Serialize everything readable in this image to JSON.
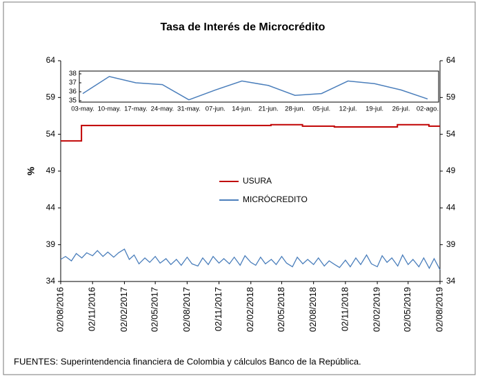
{
  "chart_data": [
    {
      "type": "line",
      "title": "Tasa de Interés de Microcrédito",
      "ylabel": "%",
      "note": "FUENTES: Superintendencia financiera de Colombia y cálculos Banco de la República.",
      "xlim": [
        "02/08/2016",
        "02/08/2019"
      ],
      "xticks": [
        "02/08/2016",
        "02/11/2016",
        "02/02/2017",
        "02/05/2017",
        "02/08/2017",
        "02/11/2017",
        "02/02/2018",
        "02/05/2018",
        "02/08/2018",
        "02/11/2018",
        "02/02/2019",
        "02/05/2019",
        "02/08/2019"
      ],
      "ylim": [
        34,
        64
      ],
      "yticks": [
        34,
        39,
        44,
        49,
        54,
        59,
        64
      ],
      "y2lim": [
        34,
        64
      ],
      "y2ticks": [
        34,
        39,
        44,
        49,
        54,
        59,
        64
      ],
      "series": [
        {
          "name": "USURA",
          "color": "#c00000",
          "step": true,
          "x": [
            "02/08/2016",
            "01/10/2016",
            "01/04/2018",
            "01/07/2018",
            "01/10/2018",
            "01/04/2019",
            "01/07/2019"
          ],
          "values": [
            53.1,
            55.2,
            55.3,
            55.1,
            55.0,
            55.3,
            55.1
          ]
        },
        {
          "name": "MICRÓCREDITO",
          "color": "#4a7ebb",
          "x": [
            "02/08/2016",
            "16/08/2016",
            "02/09/2016",
            "16/09/2016",
            "02/10/2016",
            "16/10/2016",
            "02/11/2016",
            "16/11/2016",
            "02/12/2016",
            "16/12/2016",
            "02/01/2017",
            "16/01/2017",
            "02/02/2017",
            "16/02/2017",
            "02/03/2017",
            "16/03/2017",
            "02/04/2017",
            "16/04/2017",
            "02/05/2017",
            "16/05/2017",
            "02/06/2017",
            "16/06/2017",
            "02/07/2017",
            "16/07/2017",
            "02/08/2017",
            "16/08/2017",
            "02/09/2017",
            "16/09/2017",
            "02/10/2017",
            "16/10/2017",
            "02/11/2017",
            "16/11/2017",
            "02/12/2017",
            "16/12/2017",
            "02/01/2018",
            "16/01/2018",
            "02/02/2018",
            "16/02/2018",
            "02/03/2018",
            "16/03/2018",
            "02/04/2018",
            "16/04/2018",
            "02/05/2018",
            "16/05/2018",
            "02/06/2018",
            "16/06/2018",
            "02/07/2018",
            "16/07/2018",
            "02/08/2018",
            "16/08/2018",
            "02/09/2018",
            "16/09/2018",
            "02/10/2018",
            "16/10/2018",
            "02/11/2018",
            "16/11/2018",
            "02/12/2018",
            "16/12/2018",
            "02/01/2019",
            "16/01/2019",
            "02/02/2019",
            "16/02/2019",
            "02/03/2019",
            "16/03/2019",
            "02/04/2019",
            "16/04/2019",
            "02/05/2019",
            "16/05/2019",
            "02/06/2019",
            "16/06/2019",
            "02/07/2019",
            "16/07/2019",
            "02/08/2019"
          ],
          "values": [
            37.0,
            37.4,
            36.8,
            37.8,
            37.2,
            37.9,
            37.5,
            38.2,
            37.4,
            38.0,
            37.3,
            37.9,
            38.4,
            37.0,
            37.6,
            36.4,
            37.2,
            36.6,
            37.4,
            36.5,
            37.1,
            36.3,
            37.0,
            36.2,
            37.3,
            36.4,
            36.1,
            37.2,
            36.3,
            37.4,
            36.5,
            37.1,
            36.4,
            37.3,
            36.2,
            37.5,
            36.6,
            36.2,
            37.3,
            36.4,
            37.0,
            36.3,
            37.4,
            36.5,
            36.0,
            37.3,
            36.4,
            37.0,
            36.3,
            37.2,
            36.1,
            36.8,
            36.3,
            35.9,
            36.9,
            36.0,
            37.2,
            36.3,
            37.6,
            36.4,
            36.0,
            37.5,
            36.6,
            37.2,
            36.1,
            37.6,
            36.3,
            37.0,
            36.0,
            37.2,
            35.8,
            37.1,
            35.6
          ]
        }
      ]
    },
    {
      "type": "line",
      "categories": [
        "03-may.",
        "10-may.",
        "17-may.",
        "24-may.",
        "31-may.",
        "07-jun.",
        "14-jun.",
        "21-jun.",
        "28-jun.",
        "05-jul.",
        "12-jul.",
        "19-jul.",
        "26-jul.",
        "02-ago."
      ],
      "ylim": [
        35,
        38
      ],
      "yticks": [
        35,
        36,
        37,
        38
      ],
      "series": [
        {
          "color": "#4a7ebb",
          "values": [
            35.8,
            37.7,
            37.0,
            36.8,
            35.1,
            36.2,
            37.2,
            36.7,
            35.6,
            35.8,
            37.2,
            36.9,
            36.2,
            35.2
          ]
        }
      ]
    }
  ]
}
